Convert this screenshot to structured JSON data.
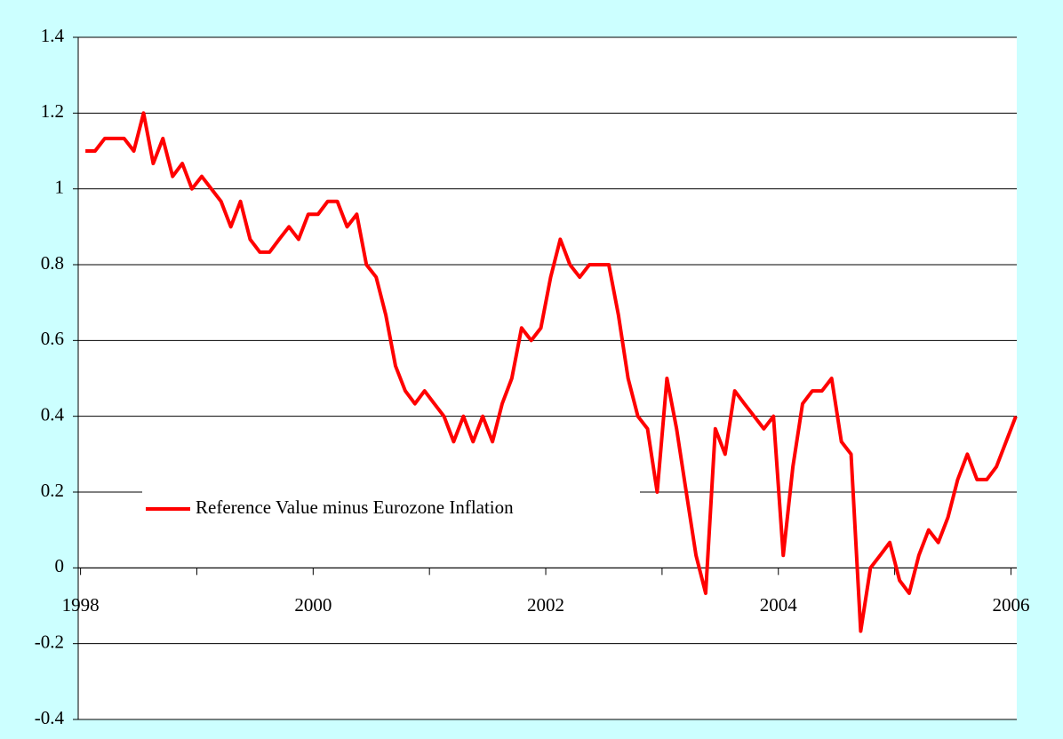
{
  "chart_data": {
    "type": "line",
    "x": [
      1998.042,
      1998.125,
      1998.208,
      1998.292,
      1998.375,
      1998.458,
      1998.542,
      1998.625,
      1998.708,
      1998.792,
      1998.875,
      1998.958,
      1999.042,
      1999.125,
      1999.208,
      1999.292,
      1999.375,
      1999.458,
      1999.542,
      1999.625,
      1999.708,
      1999.792,
      1999.875,
      1999.958,
      2000.042,
      2000.125,
      2000.208,
      2000.292,
      2000.375,
      2000.458,
      2000.542,
      2000.625,
      2000.708,
      2000.792,
      2000.875,
      2000.958,
      2001.042,
      2001.125,
      2001.208,
      2001.292,
      2001.375,
      2001.458,
      2001.542,
      2001.625,
      2001.708,
      2001.792,
      2001.875,
      2001.958,
      2002.042,
      2002.125,
      2002.208,
      2002.292,
      2002.375,
      2002.458,
      2002.542,
      2002.625,
      2002.708,
      2002.792,
      2002.875,
      2002.958,
      2003.042,
      2003.125,
      2003.208,
      2003.292,
      2003.375,
      2003.458,
      2003.542,
      2003.625,
      2003.708,
      2003.792,
      2003.875,
      2003.958,
      2004.042,
      2004.125,
      2004.208,
      2004.292,
      2004.375,
      2004.458,
      2004.542,
      2004.625,
      2004.708,
      2004.792,
      2004.875,
      2004.958,
      2005.042,
      2005.125,
      2005.208,
      2005.292,
      2005.375,
      2005.458,
      2005.542,
      2005.625,
      2005.708,
      2005.792,
      2005.875,
      2005.958,
      2006.042
    ],
    "series": [
      {
        "name": "Reference Value minus Eurozone Inflation",
        "color": "#ff0000",
        "values": [
          1.1,
          1.1,
          1.133,
          1.133,
          1.133,
          1.1,
          1.2,
          1.067,
          1.133,
          1.033,
          1.067,
          1.0,
          1.033,
          1.0,
          0.967,
          0.9,
          0.967,
          0.867,
          0.833,
          0.833,
          0.867,
          0.9,
          0.867,
          0.933,
          0.933,
          0.967,
          0.967,
          0.9,
          0.933,
          0.8,
          0.767,
          0.667,
          0.533,
          0.467,
          0.433,
          0.467,
          0.433,
          0.4,
          0.333,
          0.4,
          0.333,
          0.4,
          0.333,
          0.433,
          0.5,
          0.633,
          0.6,
          0.633,
          0.767,
          0.867,
          0.8,
          0.767,
          0.8,
          0.8,
          0.8,
          0.667,
          0.5,
          0.4,
          0.367,
          0.2,
          0.5,
          0.367,
          0.2,
          0.033,
          -0.067,
          0.367,
          0.3,
          0.467,
          0.433,
          0.4,
          0.367,
          0.4,
          0.033,
          0.267,
          0.433,
          0.467,
          0.467,
          0.5,
          0.333,
          0.3,
          -0.167,
          0.0,
          0.033,
          0.067,
          -0.033,
          -0.067,
          0.033,
          0.1,
          0.067,
          0.133,
          0.233,
          0.3,
          0.233,
          0.233,
          0.267,
          0.333,
          0.4
        ]
      }
    ],
    "xlim": [
      1997.98,
      2006.05
    ],
    "xticks": [
      1998,
      2000,
      2002,
      2004,
      2006
    ],
    "xminorticks": [
      1999,
      2001,
      2003,
      2005
    ],
    "ylim": [
      -0.4,
      1.4
    ],
    "yticks": [
      -0.4,
      -0.2,
      0,
      0.2,
      0.4,
      0.6,
      0.8,
      1,
      1.2,
      1.4
    ],
    "grid": true
  }
}
